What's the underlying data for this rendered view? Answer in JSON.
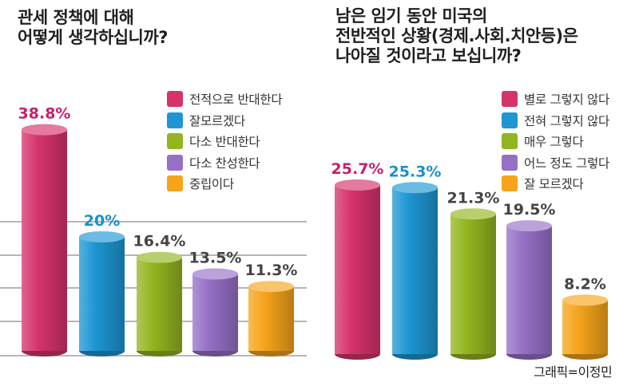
{
  "credit": "그래픽=이정민",
  "chart_data": [
    {
      "type": "bar",
      "title_lines": [
        "관세 정책에 대해",
        "어떻게 생각하십니까?"
      ],
      "categories": [
        "전적으로 반대한다",
        "잘모르겠다",
        "다소 반대한다",
        "다소 찬성한다",
        "중립이다"
      ],
      "values": [
        38.8,
        20,
        16.4,
        13.5,
        11.3
      ],
      "value_labels": [
        "38.8%",
        "20%",
        "16.4%",
        "13.5%",
        "11.3%"
      ],
      "colors": [
        "#d6336c",
        "#1d96d3",
        "#93b51f",
        "#9670c7",
        "#f6a41b"
      ],
      "label_colors": [
        "#c71f6c",
        "#1a8fcf",
        "#444444",
        "#444444",
        "#444444"
      ],
      "legend_placement": "top-right",
      "grid": true
    },
    {
      "type": "bar",
      "title_lines": [
        "남은 임기 동안 미국의",
        "전반적인 상황(경제.사회.치안등)은",
        "나아질 것이라고 보십니까?"
      ],
      "categories": [
        "별로 그렇지 않다",
        "전혀 그렇지 않다",
        "매우 그렇다",
        "어느 정도 그렇다",
        "잘 모르겠다"
      ],
      "values": [
        25.7,
        25.3,
        21.3,
        19.5,
        8.2
      ],
      "value_labels": [
        "25.7%",
        "25.3%",
        "21.3%",
        "19.5%",
        "8.2%"
      ],
      "colors": [
        "#d6336c",
        "#1d96d3",
        "#93b51f",
        "#9670c7",
        "#f6a41b"
      ],
      "label_colors": [
        "#c71f6c",
        "#1a8fcf",
        "#444444",
        "#444444",
        "#444444"
      ],
      "legend_placement": "top-right",
      "grid": false
    }
  ]
}
